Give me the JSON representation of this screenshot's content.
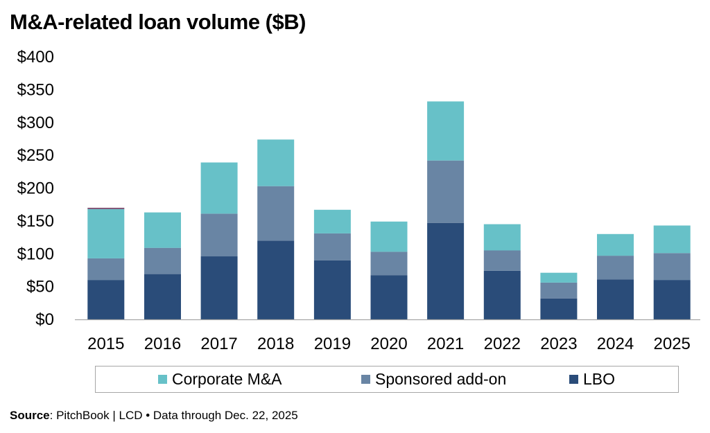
{
  "chart_data": {
    "type": "bar",
    "stacked": true,
    "title": "M&A-related loan volume ($B)",
    "categories": [
      "2015",
      "2016",
      "2017",
      "2018",
      "2019",
      "2020",
      "2021",
      "2022",
      "2023",
      "2024",
      "2025"
    ],
    "series": [
      {
        "name": "LBO",
        "color": "#2a4c79",
        "values": [
          60,
          69,
          96,
          120,
          90,
          67,
          147,
          74,
          32,
          61,
          60
        ]
      },
      {
        "name": "Sponsored add-on",
        "color": "#6985a4",
        "values": [
          33,
          40,
          65,
          83,
          41,
          36,
          95,
          31,
          24,
          36,
          41
        ]
      },
      {
        "name": "Corporate M&A",
        "color": "#67c1c8",
        "values": [
          75,
          54,
          78,
          71,
          36,
          46,
          90,
          40,
          15,
          33,
          42
        ]
      },
      {
        "name": "",
        "color": "#7a4a6e",
        "values": [
          2,
          0,
          0,
          0,
          0,
          0,
          0,
          0,
          0,
          0,
          0
        ]
      }
    ],
    "ylim": [
      0,
      400
    ],
    "yticks": [
      0,
      50,
      100,
      150,
      200,
      250,
      300,
      350,
      400
    ],
    "ytick_labels": [
      "$0",
      "$50",
      "$100",
      "$150",
      "$200",
      "$250",
      "$300",
      "$350",
      "$400"
    ],
    "legend": {
      "placement": "bottom",
      "order": [
        "Corporate M&A",
        "Sponsored add-on",
        "LBO"
      ]
    },
    "grid": false
  },
  "legend_labels": {
    "corporate": "Corporate M&A",
    "sponsored": "Sponsored add-on",
    "lbo": "LBO"
  },
  "colors": {
    "corporate": "#67c1c8",
    "sponsored": "#6985a4",
    "lbo": "#2a4c79"
  },
  "source": {
    "label": "Source",
    "text": ": PitchBook | LCD • Data through Dec. 22, 2025"
  }
}
